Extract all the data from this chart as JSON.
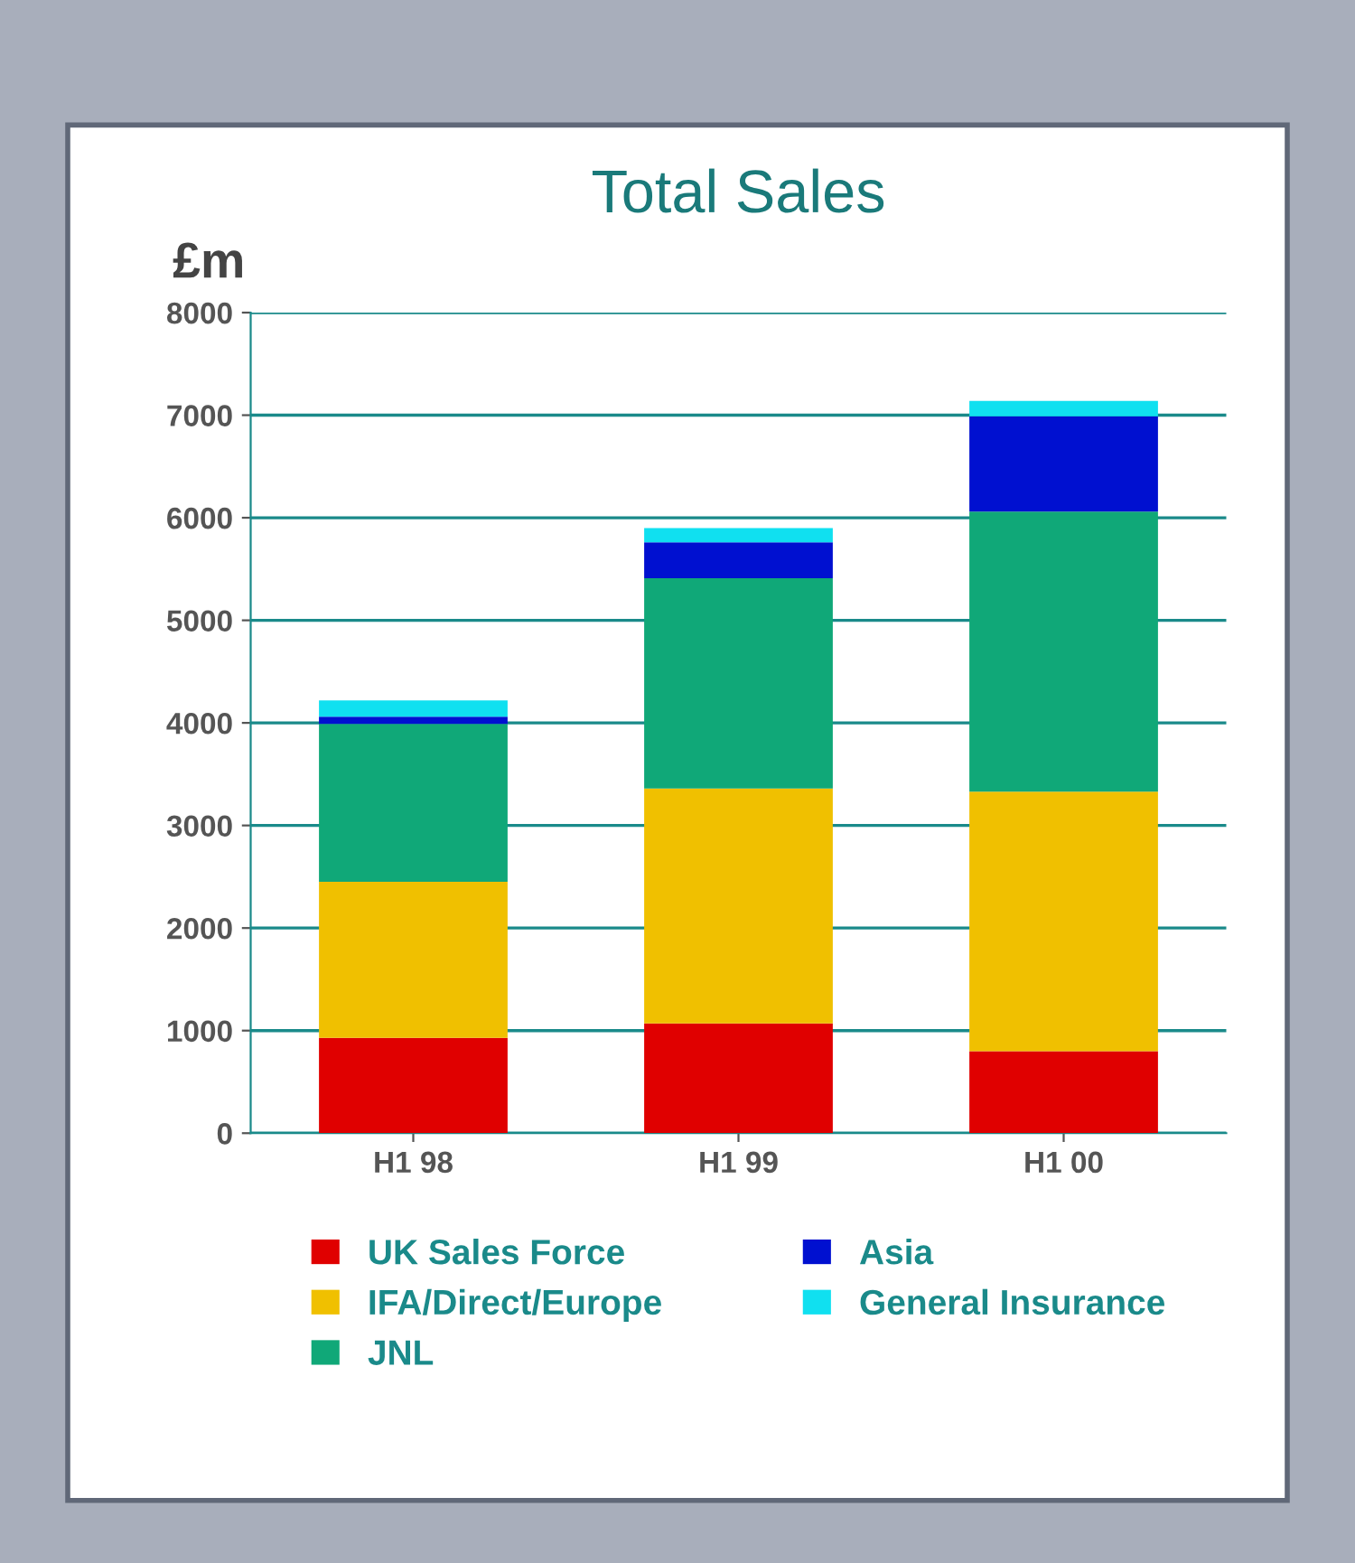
{
  "chart_data": {
    "type": "bar",
    "title": "Total Sales",
    "ylabel": "£m",
    "categories": [
      "H1 98",
      "H1 99",
      "H1 00"
    ],
    "stacked": true,
    "series": [
      {
        "name": "UK Sales Force",
        "color": "#e00000",
        "values": [
          930,
          1070,
          800
        ]
      },
      {
        "name": "IFA/Direct/Europe",
        "color": "#f0c000",
        "values": [
          1520,
          2290,
          2530
        ]
      },
      {
        "name": "JNL",
        "color": "#10a878",
        "values": [
          1540,
          2050,
          2730
        ]
      },
      {
        "name": "Asia",
        "color": "#0010d0",
        "values": [
          70,
          350,
          930
        ]
      },
      {
        "name": "General Insurance",
        "color": "#10e0f0",
        "values": [
          160,
          140,
          150
        ]
      }
    ],
    "ylim": [
      0,
      8000
    ],
    "yticks": [
      0,
      1000,
      2000,
      3000,
      4000,
      5000,
      6000,
      7000,
      8000
    ],
    "grid": "y",
    "legend": "bottom"
  }
}
